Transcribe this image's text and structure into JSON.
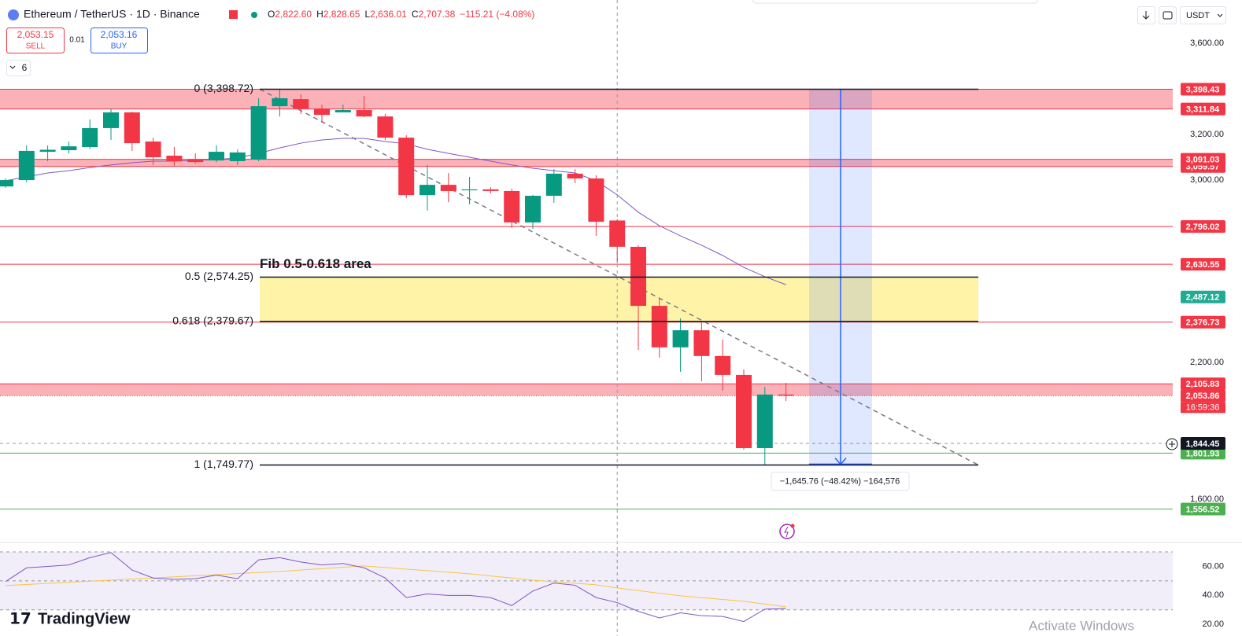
{
  "header": {
    "symbol": "Ethereum / TetherUS · 1D · Binance",
    "ohlc": [
      {
        "key": "O",
        "value": "2,822.60"
      },
      {
        "key": "H",
        "value": "2,828.65"
      },
      {
        "key": "L",
        "value": "2,636.01"
      },
      {
        "key": "C",
        "value": "2,707.38"
      }
    ],
    "change": "−115.21 (−4.08%)",
    "sell_price": "2,053.15",
    "sell": "SELL",
    "spread": "0.01",
    "buy_price": "2,053.16",
    "buy": "BUY",
    "indicators": "6",
    "currency": "USDT"
  },
  "chart_data": {
    "type": "candlestick",
    "up_color": "#089981",
    "down_color": "#f23645",
    "ma_color": "#7e57c2",
    "grid": false,
    "ylim": [
      1410,
      3790
    ],
    "yticks": [
      {
        "value": 3600,
        "label": "3,600.00"
      },
      {
        "value": 3200,
        "label": "3,200.00"
      },
      {
        "value": 3000,
        "label": "3,000.00"
      },
      {
        "value": 2200,
        "label": "2,200.00"
      },
      {
        "value": 1600,
        "label": "1,600.00"
      }
    ],
    "candles": [
      {
        "open": 2972,
        "high": 3007,
        "low": 2966,
        "close": 3000
      },
      {
        "open": 3000,
        "high": 3152,
        "low": 2990,
        "close": 3128
      },
      {
        "open": 3124,
        "high": 3152,
        "low": 3083,
        "close": 3133
      },
      {
        "open": 3131,
        "high": 3169,
        "low": 3117,
        "close": 3148
      },
      {
        "open": 3145,
        "high": 3266,
        "low": 3135,
        "close": 3228
      },
      {
        "open": 3228,
        "high": 3314,
        "low": 3176,
        "close": 3297
      },
      {
        "open": 3297,
        "high": 3300,
        "low": 3128,
        "close": 3162
      },
      {
        "open": 3169,
        "high": 3186,
        "low": 3066,
        "close": 3100
      },
      {
        "open": 3107,
        "high": 3145,
        "low": 3062,
        "close": 3083
      },
      {
        "open": 3090,
        "high": 3117,
        "low": 3072,
        "close": 3079
      },
      {
        "open": 3086,
        "high": 3152,
        "low": 3079,
        "close": 3124
      },
      {
        "open": 3083,
        "high": 3135,
        "low": 3066,
        "close": 3121
      },
      {
        "open": 3090,
        "high": 3359,
        "low": 3083,
        "close": 3324
      },
      {
        "open": 3324,
        "high": 3398.72,
        "low": 3279,
        "close": 3359
      },
      {
        "open": 3355,
        "high": 3376,
        "low": 3290,
        "close": 3314
      },
      {
        "open": 3314,
        "high": 3331,
        "low": 3252,
        "close": 3286
      },
      {
        "open": 3297,
        "high": 3331,
        "low": 3300,
        "close": 3307
      },
      {
        "open": 3307,
        "high": 3369,
        "low": 3276,
        "close": 3279
      },
      {
        "open": 3279,
        "high": 3290,
        "low": 3176,
        "close": 3186
      },
      {
        "open": 3186,
        "high": 3197,
        "low": 2921,
        "close": 2934
      },
      {
        "open": 2934,
        "high": 3066,
        "low": 2866,
        "close": 2979
      },
      {
        "open": 2979,
        "high": 3031,
        "low": 2903,
        "close": 2952
      },
      {
        "open": 2955,
        "high": 3014,
        "low": 2893,
        "close": 2959
      },
      {
        "open": 2959,
        "high": 2969,
        "low": 2941,
        "close": 2952
      },
      {
        "open": 2952,
        "high": 2962,
        "low": 2790,
        "close": 2814
      },
      {
        "open": 2814,
        "high": 2934,
        "low": 2786,
        "close": 2931
      },
      {
        "open": 2931,
        "high": 3048,
        "low": 2900,
        "close": 3028
      },
      {
        "open": 3028,
        "high": 3048,
        "low": 2986,
        "close": 3007
      },
      {
        "open": 3007,
        "high": 3021,
        "low": 2755,
        "close": 2817
      },
      {
        "open": 2822.6,
        "high": 2828.65,
        "low": 2636.01,
        "close": 2707.38
      },
      {
        "open": 2707,
        "high": 2714,
        "low": 2255,
        "close": 2448
      },
      {
        "open": 2448,
        "high": 2479,
        "low": 2221,
        "close": 2266
      },
      {
        "open": 2266,
        "high": 2393,
        "low": 2159,
        "close": 2341
      },
      {
        "open": 2341,
        "high": 2376,
        "low": 2117,
        "close": 2228
      },
      {
        "open": 2228,
        "high": 2300,
        "low": 2076,
        "close": 2145
      },
      {
        "open": 2145,
        "high": 2169,
        "low": 1817,
        "close": 1824
      },
      {
        "open": 1824,
        "high": 2093,
        "low": 1749.77,
        "close": 2059
      },
      {
        "open": 2059,
        "high": 2110,
        "low": 2031,
        "close": 2053.86
      }
    ],
    "ma": [
      2997,
      3014,
      3031,
      3041,
      3055,
      3066,
      3076,
      3083,
      3083,
      3086,
      3090,
      3097,
      3117,
      3141,
      3162,
      3176,
      3183,
      3183,
      3169,
      3159,
      3135,
      3117,
      3100,
      3083,
      3066,
      3052,
      3041,
      3031,
      2997,
      2935,
      2859,
      2800,
      2755,
      2714,
      2669,
      2617,
      2576,
      2541
    ],
    "zone_color": "#f9a9af",
    "zones": [
      {
        "low": 3311.84,
        "high": 3398.43
      },
      {
        "low": 3059.57,
        "high": 3091.03
      },
      {
        "low": 2053.86,
        "high": 2105.83
      }
    ],
    "levels": [
      {
        "value": 3398.43,
        "label": "3,398.43",
        "color": "#f23645",
        "style": "solid"
      },
      {
        "value": 3311.84,
        "label": "3,311.84",
        "color": "#f23645",
        "style": "solid"
      },
      {
        "value": 3059.57,
        "label": "3,059.57",
        "color": "#f23645",
        "style": "solid"
      },
      {
        "value": 3091.03,
        "label": "3,091.03",
        "color": "#f23645",
        "style": "solid"
      },
      {
        "value": 2796.02,
        "label": "2,796.02",
        "color": "#f23645",
        "style": "solid"
      },
      {
        "value": 2630.55,
        "label": "2,630.55",
        "color": "#f23645",
        "style": "solid"
      },
      {
        "value": 2487.12,
        "label": "2,487.12",
        "color": "#22ab94",
        "style": "none"
      },
      {
        "value": 2376.73,
        "label": "2,376.73",
        "color": "#f23645",
        "style": "solid"
      },
      {
        "value": 2105.83,
        "label": "2,105.83",
        "color": "#f23645",
        "style": "solid"
      },
      {
        "value": 2053.86,
        "label": "2,053.86",
        "color": "#f23645",
        "style": "dotted",
        "countdown": "16:59:36"
      },
      {
        "value": 1801.93,
        "label": "1,801.93",
        "color": "#4caf50",
        "style": "solid"
      },
      {
        "value": 1844.45,
        "label": "1,844.45",
        "color": "#131722",
        "style": "dashed"
      },
      {
        "value": 1556.52,
        "label": "1,556.52",
        "color": "#4caf50",
        "style": "solid"
      }
    ],
    "fib": {
      "levels": [
        {
          "value": 3398.72,
          "label": "0 (3,398.72)"
        },
        {
          "value": 2574.25,
          "label": "0.5 (2,574.25)"
        },
        {
          "value": 2379.67,
          "label": "0.618 (2,379.67)"
        },
        {
          "value": 1749.77,
          "label": "1 (1,749.77)"
        }
      ],
      "area_label": "Fib 0.5-0.618 area",
      "area_color": "#fff3a8"
    },
    "measure": {
      "high": 3398.43,
      "low": 1752.67,
      "label": "−1,645.76 (−48.42%) −164,576"
    },
    "rsi": {
      "ylim": [
        12,
        76.5
      ],
      "yticks": [
        {
          "value": 60,
          "label": "60.00"
        },
        {
          "value": 40,
          "label": "40.00"
        },
        {
          "value": 20,
          "label": "20.00"
        }
      ],
      "bands": [
        70,
        50,
        30
      ],
      "color": "#7e57c2",
      "ma_color": "#f7c548",
      "values": [
        49.5,
        59,
        60,
        61,
        66,
        69.5,
        57.5,
        52,
        51,
        51.5,
        54,
        51.5,
        64.5,
        66,
        63,
        61,
        62,
        59,
        52,
        38.5,
        41,
        40,
        40,
        38.5,
        33,
        43,
        48.5,
        47,
        38.5,
        35,
        29,
        24.5,
        28,
        26,
        25.5,
        22,
        30.5,
        31
      ],
      "ma": [
        46.8,
        47.5,
        48.3,
        49,
        49.8,
        50.5,
        51.3,
        52,
        52.8,
        53.5,
        54.3,
        55,
        55.8,
        56.5,
        57.5,
        58.4,
        59.4,
        60.3,
        59.2,
        58.1,
        57.1,
        56,
        54.9,
        53.4,
        52,
        50.5,
        49.4,
        48.4,
        47.3,
        45.1,
        43.3,
        41.5,
        39.7,
        38.4,
        37.2,
        35.9,
        34,
        32.2
      ]
    }
  },
  "footer": {
    "logo": "TradingView",
    "watermark": "Activate Windows"
  }
}
